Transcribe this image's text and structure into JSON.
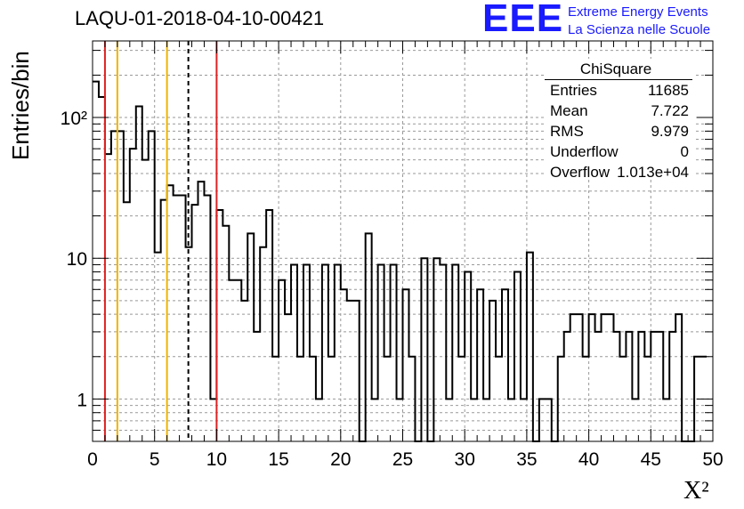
{
  "title": "LAQU-01-2018-04-10-00421",
  "logo": {
    "mark": "EEE",
    "line1": "Extreme Energy Events",
    "line2": "La Scienza nelle Scuole"
  },
  "stats": {
    "title": "ChiSquare",
    "rows": [
      {
        "label": "Entries",
        "value": "11685"
      },
      {
        "label": "Mean",
        "value": "7.722"
      },
      {
        "label": "RMS",
        "value": "9.979"
      },
      {
        "label": "Underflow",
        "value": "0"
      },
      {
        "label": "Overflow",
        "value": "1.013e+04"
      }
    ]
  },
  "chart_data": {
    "type": "histogram",
    "title": "LAQU-01-2018-04-10-00421",
    "xlabel": "X²",
    "ylabel": "Entries/bin",
    "xlim": [
      0,
      50
    ],
    "ylim": [
      0.5,
      350
    ],
    "log_y": true,
    "grid": true,
    "bin_width": 0.5,
    "x_ticks": [
      0,
      5,
      10,
      15,
      20,
      25,
      30,
      35,
      40,
      45,
      50
    ],
    "y_ticks": [
      "1",
      "10",
      "10²"
    ],
    "values": [
      180,
      140,
      55,
      80,
      80,
      25,
      60,
      120,
      50,
      80,
      11,
      26,
      33,
      28,
      28,
      12,
      24,
      35,
      28,
      1,
      22,
      17,
      7,
      7,
      5,
      15,
      3,
      12,
      22,
      2,
      7,
      4,
      9,
      2,
      9,
      2,
      1,
      9,
      2,
      9,
      6,
      5,
      5,
      0,
      15,
      1,
      9,
      2,
      9,
      1,
      6,
      2,
      0,
      10,
      0,
      10,
      9,
      1,
      9,
      2,
      8,
      1,
      6,
      1,
      5,
      2,
      6,
      1,
      8,
      1,
      11,
      0,
      1,
      1,
      0,
      2,
      3,
      4,
      4,
      2,
      4,
      3,
      4,
      4,
      3,
      2,
      3,
      1,
      3,
      2,
      3,
      3,
      1,
      3,
      4,
      0,
      0,
      2,
      2
    ],
    "reference_lines": [
      {
        "x": 1,
        "color": "#dd2222",
        "style": "solid"
      },
      {
        "x": 2,
        "color": "#f0b400",
        "style": "solid"
      },
      {
        "x": 6,
        "color": "#f0b400",
        "style": "solid"
      },
      {
        "x": 7.722,
        "color": "#000000",
        "style": "dashed"
      },
      {
        "x": 10,
        "color": "#dd2222",
        "style": "solid"
      }
    ]
  }
}
